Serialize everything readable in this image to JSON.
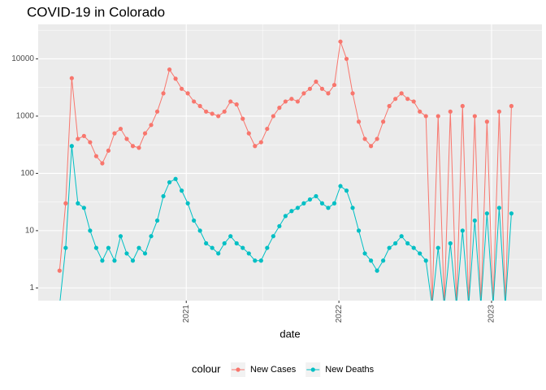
{
  "chart_data": {
    "type": "line",
    "title": "COVID-19 in Colorado",
    "x_label": "date",
    "legend_title": "colour",
    "legend_position": "bottom",
    "log_y": true,
    "grid": true,
    "x": [
      2020.17,
      2020.21,
      2020.25,
      2020.29,
      2020.33,
      2020.37,
      2020.41,
      2020.45,
      2020.49,
      2020.53,
      2020.57,
      2020.61,
      2020.65,
      2020.69,
      2020.73,
      2020.77,
      2020.81,
      2020.85,
      2020.89,
      2020.93,
      2020.97,
      2021.01,
      2021.05,
      2021.09,
      2021.13,
      2021.17,
      2021.21,
      2021.25,
      2021.29,
      2021.33,
      2021.37,
      2021.41,
      2021.45,
      2021.49,
      2021.53,
      2021.57,
      2021.61,
      2021.65,
      2021.69,
      2021.73,
      2021.77,
      2021.81,
      2021.85,
      2021.89,
      2021.93,
      2021.97,
      2022.01,
      2022.05,
      2022.09,
      2022.13,
      2022.17,
      2022.21,
      2022.25,
      2022.29,
      2022.33,
      2022.37,
      2022.41,
      2022.45,
      2022.49,
      2022.53,
      2022.57,
      2022.61,
      2022.65,
      2022.69,
      2022.73,
      2022.77,
      2022.81,
      2022.85,
      2022.89,
      2022.93,
      2022.97,
      2023.01,
      2023.05,
      2023.09,
      2023.13
    ],
    "xlim": [
      2020.03,
      2023.33
    ],
    "xticks": [
      2021,
      2022,
      2023
    ],
    "ylim": [
      0.6,
      40000
    ],
    "yticks": [
      1,
      10,
      100,
      1000,
      10000
    ],
    "series": [
      {
        "name": "New Cases",
        "color": "#F8766D",
        "values": [
          2,
          30,
          4600,
          400,
          450,
          350,
          200,
          150,
          250,
          500,
          600,
          400,
          300,
          280,
          500,
          700,
          1200,
          2500,
          6500,
          4500,
          3000,
          2500,
          1800,
          1500,
          1200,
          1100,
          1000,
          1200,
          1800,
          1600,
          900,
          500,
          300,
          350,
          600,
          1000,
          1400,
          1800,
          2000,
          1800,
          2500,
          3000,
          4000,
          3000,
          2500,
          3500,
          20000,
          10000,
          2500,
          800,
          400,
          300,
          400,
          800,
          1500,
          2000,
          2500,
          2000,
          1800,
          1200,
          1000,
          0,
          1000,
          0,
          1200,
          0,
          1500,
          0,
          1000,
          0,
          800,
          0,
          1200,
          0,
          1500
        ]
      },
      {
        "name": "New Deaths",
        "color": "#00BFC4",
        "values": [
          0,
          5,
          300,
          30,
          25,
          10,
          5,
          3,
          5,
          3,
          8,
          4,
          3,
          5,
          4,
          8,
          15,
          40,
          70,
          80,
          50,
          30,
          15,
          10,
          6,
          5,
          4,
          6,
          8,
          6,
          5,
          4,
          3,
          3,
          5,
          8,
          12,
          18,
          22,
          25,
          30,
          35,
          40,
          30,
          25,
          30,
          60,
          50,
          25,
          10,
          4,
          3,
          2,
          3,
          5,
          6,
          8,
          6,
          5,
          4,
          3,
          0,
          5,
          0,
          6,
          0,
          10,
          0,
          15,
          0,
          20,
          0,
          25,
          0,
          20
        ]
      }
    ]
  }
}
